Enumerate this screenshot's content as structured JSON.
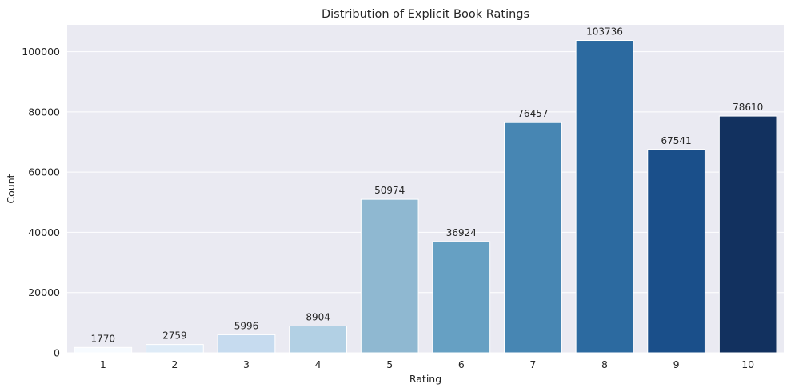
{
  "chart_data": {
    "type": "bar",
    "title": "Distribution of Explicit Book Ratings",
    "xlabel": "Rating",
    "ylabel": "Count",
    "categories": [
      "1",
      "2",
      "3",
      "4",
      "5",
      "6",
      "7",
      "8",
      "9",
      "10"
    ],
    "values": [
      1770,
      2759,
      5996,
      8904,
      50974,
      36924,
      76457,
      103736,
      67541,
      78610
    ],
    "data_labels": [
      "1770",
      "2759",
      "5996",
      "8904",
      "50974",
      "36924",
      "76457",
      "103736",
      "67541",
      "78610"
    ],
    "ylim": [
      0,
      108920
    ],
    "yticks": [
      0,
      20000,
      40000,
      60000,
      80000,
      100000
    ],
    "ytick_labels": [
      "0",
      "20000",
      "40000",
      "60000",
      "80000",
      "100000"
    ],
    "grid": true,
    "plot_background": "#eaeaf2",
    "grid_color": "#ffffff",
    "bar_colors": [
      "#f7fbff",
      "#deebf7",
      "#c6dbef",
      "#b2d0e4",
      "#8fb8d1",
      "#66a0c3",
      "#4786b3",
      "#2c6aa0",
      "#1a4f8a",
      "#12315f"
    ]
  }
}
